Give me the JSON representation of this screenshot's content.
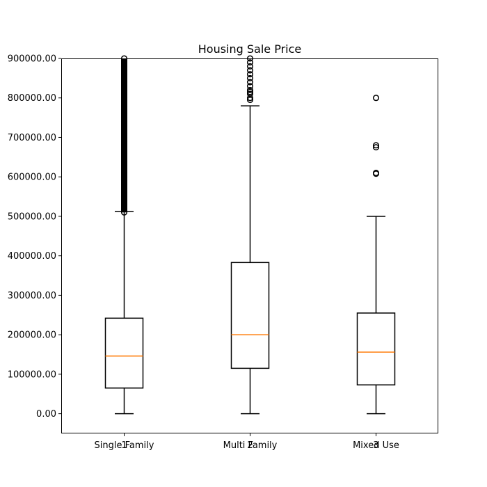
{
  "chart_data": {
    "type": "box",
    "title": "Housing Sale Price",
    "xlabel": "",
    "ylabel": "",
    "ylim": [
      -50000,
      900000
    ],
    "yticks": [
      0,
      100000,
      200000,
      300000,
      400000,
      500000,
      600000,
      700000,
      800000,
      900000
    ],
    "ytick_labels": [
      "0.00",
      "100000.00",
      "200000.00",
      "300000.00",
      "400000.00",
      "500000.00",
      "600000.00",
      "700000.00",
      "800000.00",
      "900000.00"
    ],
    "xtick_numbers": [
      "1",
      "2",
      "3"
    ],
    "categories": [
      "Single Family",
      "Multi Family",
      "Mixed Use"
    ],
    "grid": false,
    "colors": {
      "box": "#000000",
      "median": "#ff7f0e"
    },
    "series": [
      {
        "whisker_low": 0,
        "q1": 65000,
        "median": 146000,
        "q3": 242000,
        "whisker_high": 512000,
        "outliers": [
          510000,
          520000,
          530000,
          540000,
          550000,
          560000,
          570000,
          580000,
          590000,
          600000,
          610000,
          620000,
          630000,
          640000,
          650000,
          660000,
          670000,
          680000,
          690000,
          700000,
          710000,
          720000,
          730000,
          740000,
          750000,
          760000,
          770000,
          780000,
          790000,
          800000,
          810000,
          820000,
          830000,
          840000,
          850000,
          860000,
          870000,
          880000,
          890000,
          900000
        ]
      },
      {
        "whisker_low": 0,
        "q1": 115000,
        "median": 200000,
        "q3": 383000,
        "whisker_high": 780000,
        "outliers": [
          795000,
          800000,
          810000,
          815000,
          820000,
          830000,
          840000,
          850000,
          860000,
          870000,
          880000,
          890000,
          900000
        ]
      },
      {
        "whisker_low": 0,
        "q1": 73000,
        "median": 156000,
        "q3": 255000,
        "whisker_high": 500000,
        "outliers": [
          608000,
          610000,
          675000,
          680000,
          800000
        ]
      }
    ]
  }
}
